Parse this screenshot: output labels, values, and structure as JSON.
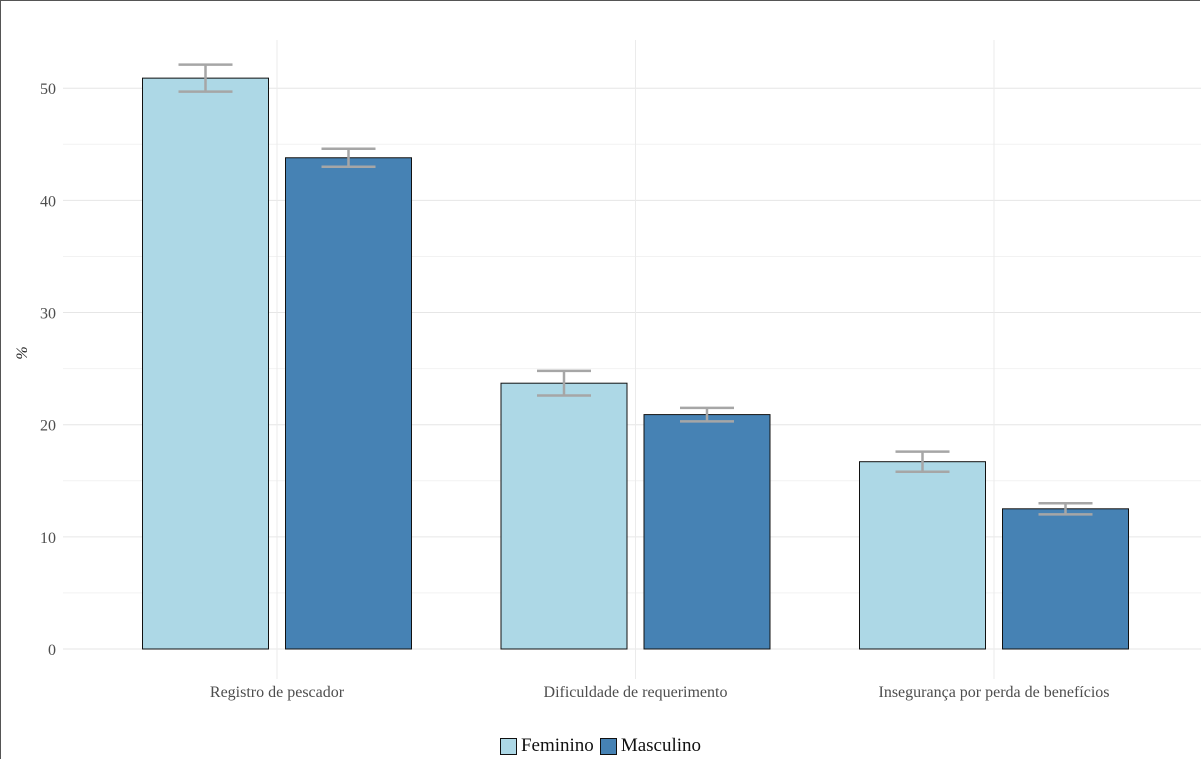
{
  "chart_data": {
    "type": "bar",
    "title": "",
    "xlabel": "",
    "ylabel": "%",
    "categories": [
      "Registro de pescador",
      "Dificuldade de requerimento",
      "Insegurança por perda de benefícios"
    ],
    "series": [
      {
        "name": "Feminino",
        "color": "#add8e6",
        "values": [
          50.9,
          23.7,
          16.7
        ],
        "error_low": [
          49.7,
          22.6,
          15.8
        ],
        "error_high": [
          52.1,
          24.8,
          17.6
        ]
      },
      {
        "name": "Masculino",
        "color": "#4682b4",
        "values": [
          43.8,
          20.9,
          12.5
        ],
        "error_low": [
          43.0,
          20.3,
          12.0
        ],
        "error_high": [
          44.6,
          21.5,
          13.0
        ]
      }
    ],
    "yticks": [
      0,
      10,
      20,
      30,
      40,
      50
    ],
    "ylim": [
      0,
      54.3
    ],
    "grid": true,
    "error_bar_color": "#a6a6a6",
    "legend_position": "bottom"
  },
  "legend": {
    "items": [
      {
        "label": "Feminino",
        "color": "#add8e6"
      },
      {
        "label": "Masculino",
        "color": "#4682b4"
      }
    ]
  }
}
